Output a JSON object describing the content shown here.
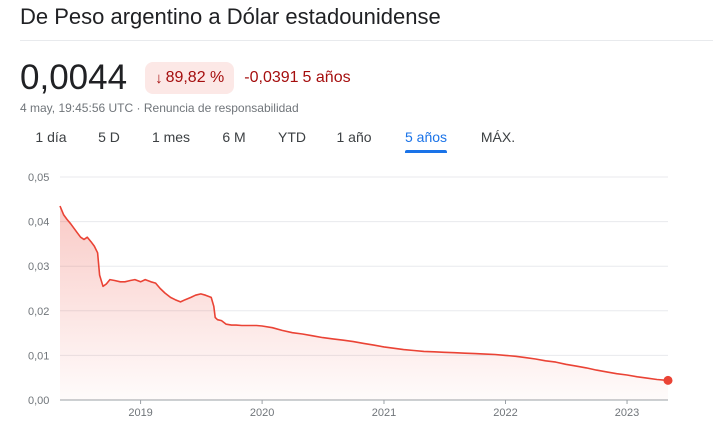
{
  "header": {
    "title": "De Peso argentino a Dólar estadounidense"
  },
  "quote": {
    "price": "0,0044",
    "change_arrow": "↓",
    "change_pct": "89,82 %",
    "change_abs": "-0,0391",
    "period": "5 años",
    "timestamp": "4 may, 19:45:56 UTC",
    "separator": "·",
    "disclaimer": "Renuncia de responsabilidad"
  },
  "tabs": [
    {
      "label": "1 día",
      "active": false
    },
    {
      "label": "5 D",
      "active": false
    },
    {
      "label": "1 mes",
      "active": false
    },
    {
      "label": "6 M",
      "active": false
    },
    {
      "label": "YTD",
      "active": false
    },
    {
      "label": "1 año",
      "active": false
    },
    {
      "label": "5 años",
      "active": true
    },
    {
      "label": "MÁX.",
      "active": false
    }
  ],
  "colors": {
    "line": "#ea4335",
    "negative_text": "#a50e0e",
    "badge_bg": "#fce8e6",
    "active_tab": "#1a73e8",
    "grid": "#e8eaed",
    "axis_text": "#70757a"
  },
  "chart_data": {
    "type": "area",
    "title": "",
    "xlabel": "",
    "ylabel": "",
    "ylim": [
      0,
      0.05
    ],
    "xlim": [
      "2018-05-04",
      "2023-05-04"
    ],
    "y_ticks": [
      {
        "value": 0.05,
        "label": "0,05"
      },
      {
        "value": 0.04,
        "label": "0,04"
      },
      {
        "value": 0.03,
        "label": "0,03"
      },
      {
        "value": 0.02,
        "label": "0,02"
      },
      {
        "value": 0.01,
        "label": "0,01"
      },
      {
        "value": 0.0,
        "label": "0,00"
      }
    ],
    "x_ticks": [
      {
        "value": "2019-01-01",
        "label": "2019"
      },
      {
        "value": "2020-01-01",
        "label": "2020"
      },
      {
        "value": "2021-01-01",
        "label": "2021"
      },
      {
        "value": "2022-01-01",
        "label": "2022"
      },
      {
        "value": "2023-01-01",
        "label": "2023"
      }
    ],
    "grid": true,
    "series": [
      {
        "x": [
          "2018-05-04",
          "2018-05-15",
          "2018-05-25",
          "2018-06-05",
          "2018-06-15",
          "2018-06-25",
          "2018-07-05",
          "2018-07-15",
          "2018-07-25",
          "2018-08-05",
          "2018-08-15",
          "2018-08-25",
          "2018-08-31",
          "2018-09-10",
          "2018-09-20",
          "2018-10-01",
          "2018-10-15",
          "2018-11-01",
          "2018-11-15",
          "2018-12-01",
          "2018-12-15",
          "2019-01-01",
          "2019-01-15",
          "2019-02-01",
          "2019-02-15",
          "2019-03-01",
          "2019-03-15",
          "2019-04-01",
          "2019-04-15",
          "2019-05-01",
          "2019-05-15",
          "2019-06-01",
          "2019-06-15",
          "2019-07-01",
          "2019-07-15",
          "2019-08-01",
          "2019-08-09",
          "2019-08-13",
          "2019-08-20",
          "2019-09-01",
          "2019-09-15",
          "2019-10-01",
          "2019-10-15",
          "2019-11-01",
          "2019-12-01",
          "2019-12-15",
          "2020-01-01",
          "2020-02-01",
          "2020-03-01",
          "2020-04-01",
          "2020-05-01",
          "2020-06-01",
          "2020-07-01",
          "2020-08-01",
          "2020-09-01",
          "2020-10-01",
          "2020-11-01",
          "2020-12-01",
          "2021-01-01",
          "2021-02-01",
          "2021-03-01",
          "2021-04-01",
          "2021-05-01",
          "2021-06-01",
          "2021-07-01",
          "2021-08-01",
          "2021-09-01",
          "2021-10-01",
          "2021-11-01",
          "2021-12-01",
          "2022-01-01",
          "2022-02-01",
          "2022-03-01",
          "2022-04-01",
          "2022-05-01",
          "2022-06-01",
          "2022-07-01",
          "2022-08-01",
          "2022-09-01",
          "2022-10-01",
          "2022-11-01",
          "2022-12-01",
          "2023-01-01",
          "2023-02-01",
          "2023-03-01",
          "2023-04-01",
          "2023-05-04"
        ],
        "y": [
          0.0435,
          0.0415,
          0.0405,
          0.0395,
          0.0385,
          0.0375,
          0.0365,
          0.036,
          0.0365,
          0.0355,
          0.0345,
          0.033,
          0.028,
          0.0255,
          0.026,
          0.027,
          0.0268,
          0.0265,
          0.0265,
          0.0268,
          0.027,
          0.0265,
          0.027,
          0.0265,
          0.0262,
          0.025,
          0.024,
          0.023,
          0.0225,
          0.022,
          0.0225,
          0.023,
          0.0235,
          0.0238,
          0.0235,
          0.023,
          0.021,
          0.0185,
          0.018,
          0.0178,
          0.017,
          0.0168,
          0.0168,
          0.0167,
          0.0167,
          0.0167,
          0.0166,
          0.0162,
          0.0156,
          0.0151,
          0.0148,
          0.0144,
          0.014,
          0.0137,
          0.0134,
          0.0131,
          0.0127,
          0.0123,
          0.0119,
          0.0116,
          0.0113,
          0.0111,
          0.0109,
          0.0108,
          0.0107,
          0.0106,
          0.0105,
          0.0104,
          0.0103,
          0.0102,
          0.01,
          0.0098,
          0.0095,
          0.0092,
          0.0088,
          0.0085,
          0.008,
          0.0076,
          0.0072,
          0.0067,
          0.0063,
          0.0059,
          0.0056,
          0.0052,
          0.0049,
          0.0046,
          0.0044
        ]
      }
    ]
  }
}
